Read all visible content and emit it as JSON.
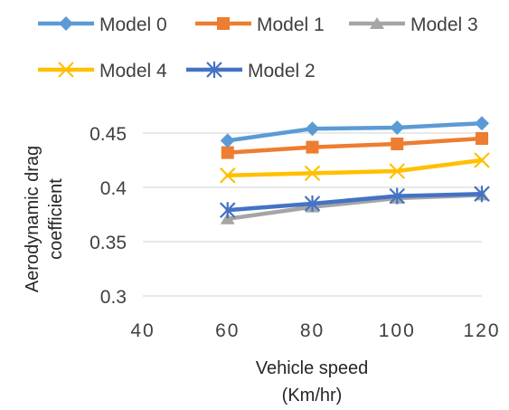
{
  "chart_data": {
    "type": "line",
    "x": [
      60,
      80,
      100,
      120
    ],
    "xlim": [
      40,
      120
    ],
    "ylim": [
      0.3,
      0.45
    ],
    "x_ticks": [
      "40",
      "60",
      "80",
      "100",
      "120"
    ],
    "y_ticks": [
      "0.3",
      "0.35",
      "0.4",
      "0.45"
    ],
    "xlabel_line1": "Vehicle speed",
    "xlabel_line2": "(Km/hr)",
    "ylabel_line1": "Aerodynamic drag",
    "ylabel_line2": "coefficient",
    "grid": "horizontal",
    "legend_position": "top",
    "series": [
      {
        "name": "Model 0",
        "values": [
          0.443,
          0.454,
          0.455,
          0.459
        ],
        "color": "#5B9BD5",
        "marker": "diamond"
      },
      {
        "name": "Model 1",
        "values": [
          0.432,
          0.437,
          0.44,
          0.445
        ],
        "color": "#ED7D31",
        "marker": "square"
      },
      {
        "name": "Model 3",
        "values": [
          0.371,
          0.382,
          0.39,
          0.393
        ],
        "color": "#A5A5A5",
        "marker": "triangle"
      },
      {
        "name": "Model 4",
        "values": [
          0.411,
          0.413,
          0.415,
          0.425
        ],
        "color": "#FFC000",
        "marker": "x"
      },
      {
        "name": "Model 2",
        "values": [
          0.379,
          0.385,
          0.392,
          0.394
        ],
        "color": "#4472C4",
        "marker": "star"
      }
    ]
  }
}
